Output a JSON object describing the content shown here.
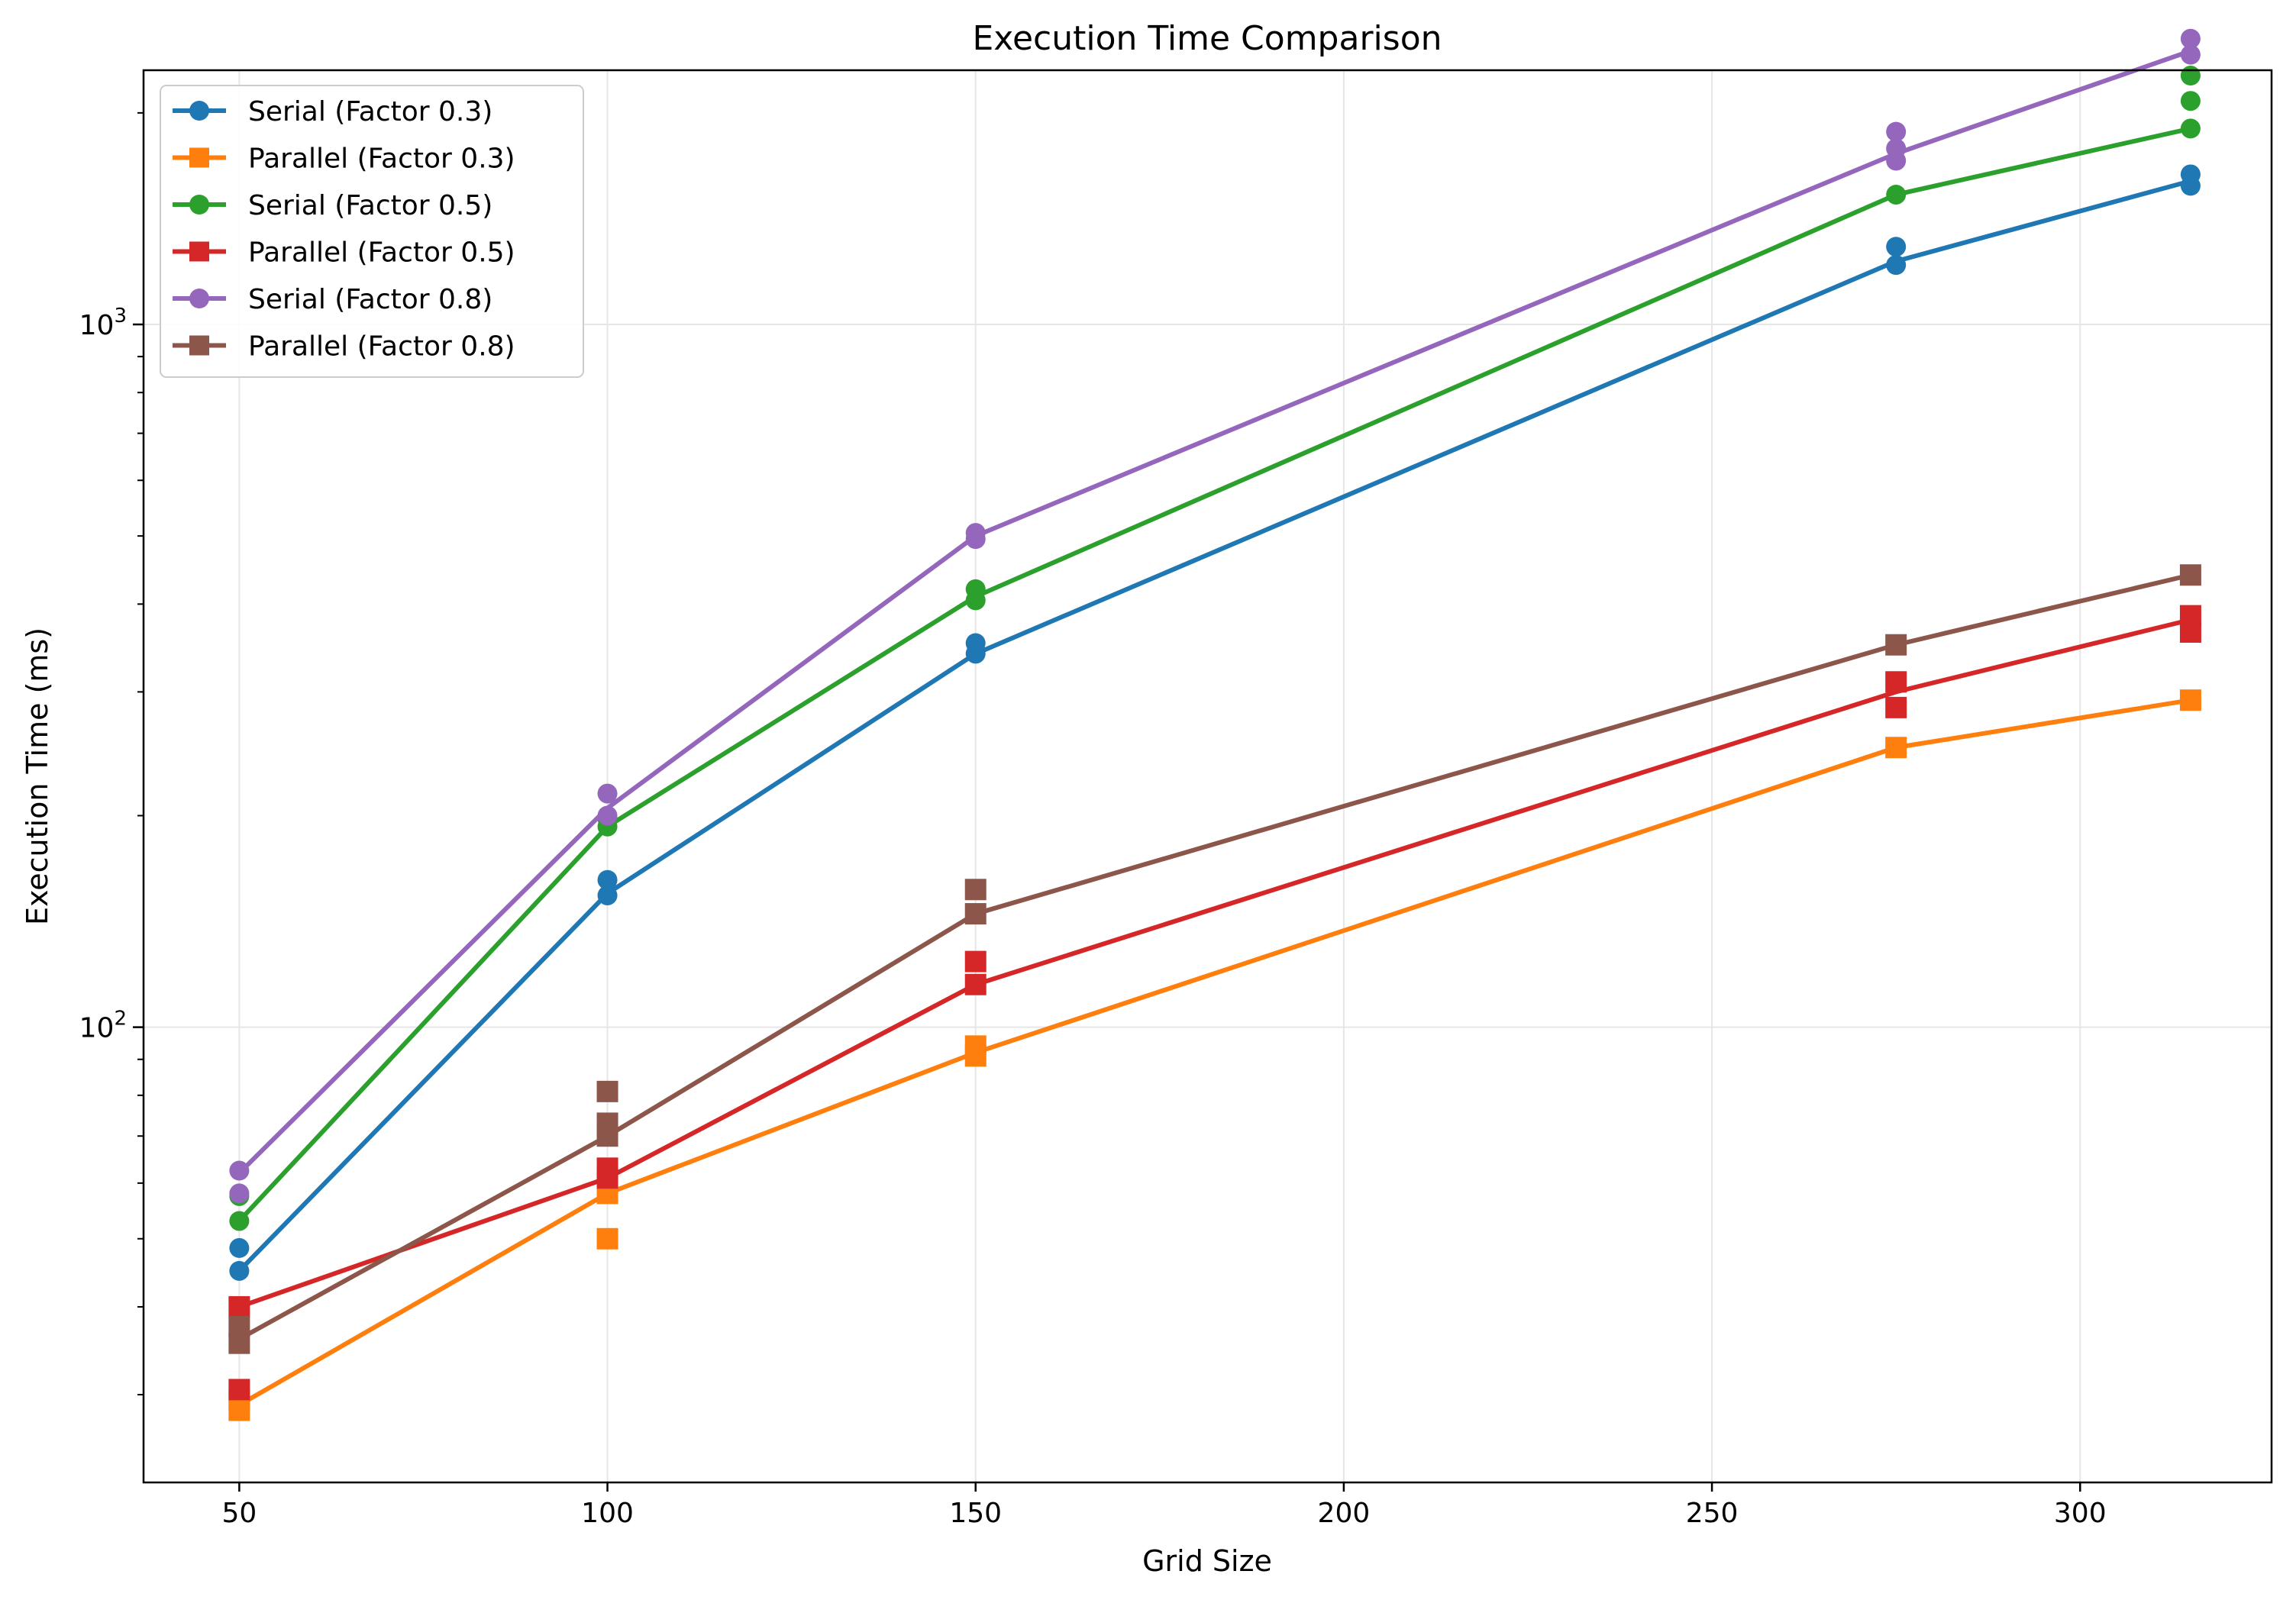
{
  "chart_data": {
    "type": "line",
    "title": "Execution Time Comparison",
    "xlabel": "Grid Size",
    "ylabel": "Execution Time (ms)",
    "yscale": "log",
    "xlim": [
      37,
      326
    ],
    "ylim": [
      22.5,
      2300
    ],
    "grid": true,
    "legend_position": "top-left",
    "x_ticks": [
      50,
      100,
      150,
      200,
      250,
      300
    ],
    "x_tick_labels": [
      "50",
      "100",
      "150",
      "200",
      "250",
      "300"
    ],
    "y_ticks": [
      100,
      1000
    ],
    "y_tick_labels": [
      {
        "base": "10",
        "exp": "2"
      },
      {
        "base": "10",
        "exp": "3"
      }
    ],
    "x": [
      50,
      100,
      150,
      275,
      315
    ],
    "series": [
      {
        "name": "Serial (Factor 0.3)",
        "color": "#1f77b4",
        "marker": "circle",
        "values": [
          45,
          155,
          340,
          1230,
          1600
        ],
        "points": [
          [
            50,
            45
          ],
          [
            50,
            48.5
          ],
          [
            100,
            154
          ],
          [
            100,
            162
          ],
          [
            150,
            340
          ],
          [
            150,
            352
          ],
          [
            275,
            1215
          ],
          [
            275,
            1290
          ],
          [
            315,
            1575
          ],
          [
            315,
            1635
          ]
        ]
      },
      {
        "name": "Parallel (Factor 0.3)",
        "color": "#ff7f0e",
        "marker": "square",
        "values": [
          29,
          58,
          92,
          250,
          292
        ],
        "points": [
          [
            50,
            28.5
          ],
          [
            50,
            29.5
          ],
          [
            100,
            50
          ],
          [
            100,
            58
          ],
          [
            150,
            91
          ],
          [
            150,
            94
          ],
          [
            275,
            250
          ],
          [
            315,
            292
          ]
        ]
      },
      {
        "name": "Serial (Factor 0.5)",
        "color": "#2ca02c",
        "marker": "circle",
        "values": [
          53,
          193,
          410,
          1530,
          1900
        ],
        "points": [
          [
            50,
            53
          ],
          [
            50,
            57.5
          ],
          [
            100,
            193
          ],
          [
            100,
            198
          ],
          [
            150,
            405
          ],
          [
            150,
            420
          ],
          [
            275,
            1530
          ],
          [
            315,
            1900
          ],
          [
            315,
            2080
          ],
          [
            315,
            2260
          ]
        ]
      },
      {
        "name": "Parallel (Factor 0.5)",
        "color": "#d62728",
        "marker": "square",
        "values": [
          40,
          61,
          115,
          300,
          380
        ],
        "points": [
          [
            50,
            30.5
          ],
          [
            50,
            40
          ],
          [
            100,
            61
          ],
          [
            100,
            63
          ],
          [
            150,
            115
          ],
          [
            150,
            124
          ],
          [
            275,
            285
          ],
          [
            275,
            310
          ],
          [
            315,
            365
          ],
          [
            315,
            385
          ]
        ]
      },
      {
        "name": "Serial (Factor 0.8)",
        "color": "#9467bd",
        "marker": "circle",
        "values": [
          62,
          205,
          500,
          1750,
          2450
        ],
        "points": [
          [
            50,
            58
          ],
          [
            50,
            62.5
          ],
          [
            100,
            200
          ],
          [
            100,
            215
          ],
          [
            150,
            495
          ],
          [
            150,
            505
          ],
          [
            275,
            1710
          ],
          [
            275,
            1780
          ],
          [
            275,
            1880
          ],
          [
            315,
            2420
          ],
          [
            315,
            2550
          ]
        ]
      },
      {
        "name": "Parallel (Factor 0.8)",
        "color": "#8c564b",
        "marker": "square",
        "values": [
          36,
          70,
          145,
          350,
          440
        ],
        "points": [
          [
            50,
            35.5
          ],
          [
            50,
            37.5
          ],
          [
            100,
            70
          ],
          [
            100,
            73
          ],
          [
            100,
            81
          ],
          [
            150,
            145
          ],
          [
            150,
            157
          ],
          [
            275,
            350
          ],
          [
            315,
            440
          ]
        ]
      }
    ]
  }
}
